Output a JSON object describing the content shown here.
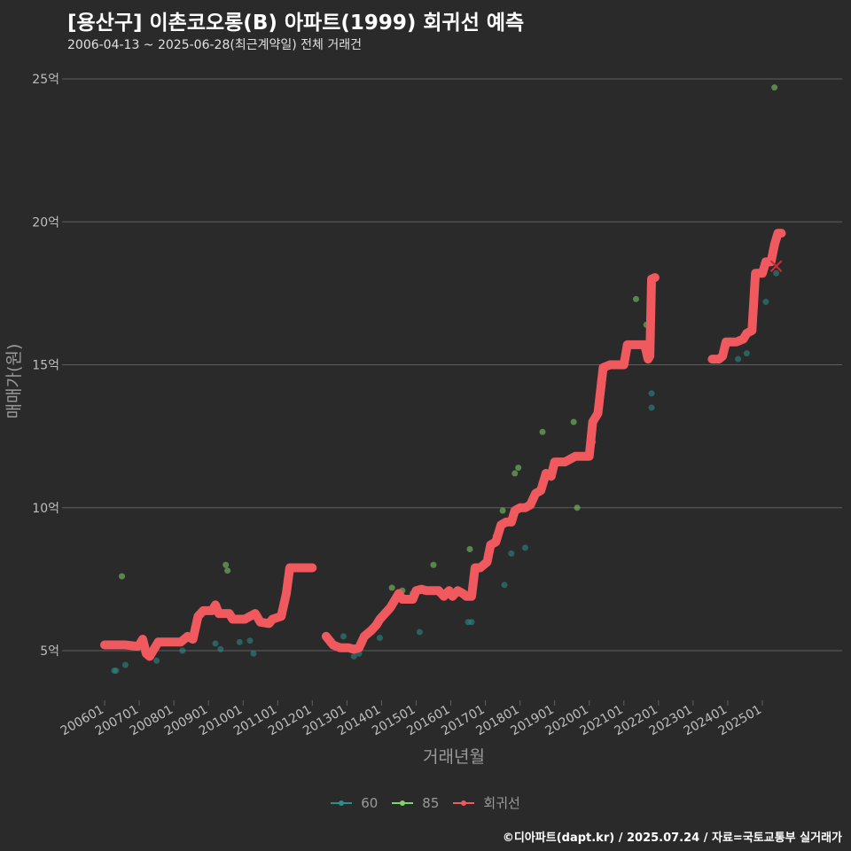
{
  "header": {
    "title": "[용산구] 이촌코오롱(B) 아파트(1999) 회귀선 예측",
    "subtitle": "2006-04-13 ~ 2025-06-28(최근계약일) 전체 거래건"
  },
  "caption": "©디아파트(dapt.kr) / 2025.07.24 / 자료=국토교통부 실거래가",
  "legend": {
    "items": [
      {
        "label": "60",
        "color": "#2a8f8a",
        "kind": "point"
      },
      {
        "label": "85",
        "color": "#7ed36a",
        "kind": "point"
      },
      {
        "label": "회귀선",
        "color": "#f0595e",
        "kind": "line"
      }
    ]
  },
  "colors": {
    "background": "#2b2a2b",
    "grid": "#5f5f5f",
    "series_60": "#2a8f8a",
    "series_85": "#7ed36a",
    "regression": "#f0595e",
    "axis_text": "#bdbdbd"
  },
  "chart_data": {
    "type": "scatter",
    "title": "[용산구] 이촌코오롱(B) 아파트(1999) 회귀선 예측",
    "subtitle": "2006-04-13 ~ 2025-06-28(최근계약일) 전체 거래건",
    "xlabel": "거래년월",
    "ylabel": "매매가(원)",
    "xlim": [
      2005.9,
      2026.1
    ],
    "ylim": [
      3.3,
      26.3
    ],
    "grid": true,
    "legend_position": "bottom",
    "x_ticks": [
      {
        "value": 2006,
        "label": "200601"
      },
      {
        "value": 2007,
        "label": "200701"
      },
      {
        "value": 2008,
        "label": "200801"
      },
      {
        "value": 2009,
        "label": "200901"
      },
      {
        "value": 2010,
        "label": "201001"
      },
      {
        "value": 2011,
        "label": "201101"
      },
      {
        "value": 2012,
        "label": "201201"
      },
      {
        "value": 2013,
        "label": "201301"
      },
      {
        "value": 2014,
        "label": "201401"
      },
      {
        "value": 2015,
        "label": "201501"
      },
      {
        "value": 2016,
        "label": "201601"
      },
      {
        "value": 2017,
        "label": "201701"
      },
      {
        "value": 2018,
        "label": "201801"
      },
      {
        "value": 2019,
        "label": "201901"
      },
      {
        "value": 2020,
        "label": "202001"
      },
      {
        "value": 2021,
        "label": "202101"
      },
      {
        "value": 2022,
        "label": "202201"
      },
      {
        "value": 2023,
        "label": "202301"
      },
      {
        "value": 2024,
        "label": "202401"
      },
      {
        "value": 2025,
        "label": "202501"
      }
    ],
    "y_ticks": [
      {
        "value": 5,
        "label": "5억"
      },
      {
        "value": 10,
        "label": "10억"
      },
      {
        "value": 15,
        "label": "15억"
      },
      {
        "value": 20,
        "label": "20억"
      },
      {
        "value": 25,
        "label": "25억"
      }
    ],
    "series": [
      {
        "name": "60",
        "type": "scatter",
        "color": "#2a8f8a",
        "points": [
          [
            2006.28,
            4.3
          ],
          [
            2006.33,
            4.3
          ],
          [
            2006.6,
            4.5
          ],
          [
            2007.5,
            4.65
          ],
          [
            2008.25,
            5.0
          ],
          [
            2009.2,
            5.25
          ],
          [
            2009.35,
            5.05
          ],
          [
            2009.9,
            5.3
          ],
          [
            2010.2,
            5.35
          ],
          [
            2010.3,
            4.9
          ],
          [
            2012.9,
            5.5
          ],
          [
            2013.2,
            4.8
          ],
          [
            2013.35,
            4.9
          ],
          [
            2013.95,
            5.45
          ],
          [
            2015.1,
            5.65
          ],
          [
            2016.5,
            6.0
          ],
          [
            2016.6,
            6.0
          ],
          [
            2017.55,
            7.3
          ],
          [
            2017.75,
            8.4
          ],
          [
            2018.15,
            8.6
          ],
          [
            2021.8,
            14.0
          ],
          [
            2021.8,
            13.5
          ],
          [
            2024.3,
            15.2
          ],
          [
            2024.55,
            15.4
          ],
          [
            2025.1,
            17.2
          ],
          [
            2025.4,
            18.2
          ]
        ]
      },
      {
        "name": "85",
        "type": "scatter",
        "color": "#7ed36a",
        "points": [
          [
            2006.5,
            7.6
          ],
          [
            2009.5,
            8.0
          ],
          [
            2009.55,
            7.8
          ],
          [
            2014.3,
            7.2
          ],
          [
            2014.6,
            7.1
          ],
          [
            2014.9,
            7.0
          ],
          [
            2015.5,
            8.0
          ],
          [
            2016.55,
            8.55
          ],
          [
            2017.3,
            9.0
          ],
          [
            2017.5,
            9.9
          ],
          [
            2017.85,
            11.2
          ],
          [
            2017.95,
            11.4
          ],
          [
            2018.65,
            12.65
          ],
          [
            2019.55,
            13.0
          ],
          [
            2019.65,
            10.0
          ],
          [
            2020.1,
            12.3
          ],
          [
            2021.35,
            17.3
          ],
          [
            2021.65,
            16.4
          ],
          [
            2025.35,
            24.7
          ]
        ]
      },
      {
        "name": "회귀선",
        "type": "line",
        "color": "#f0595e",
        "segments": [
          [
            [
              2006.0,
              5.2
            ],
            [
              2006.6,
              5.2
            ],
            [
              2006.95,
              5.15
            ],
            [
              2007.0,
              5.2
            ],
            [
              2007.1,
              5.4
            ],
            [
              2007.2,
              4.9
            ],
            [
              2007.3,
              4.8
            ],
            [
              2007.4,
              5.0
            ],
            [
              2007.55,
              5.3
            ],
            [
              2008.0,
              5.3
            ],
            [
              2008.2,
              5.3
            ],
            [
              2008.4,
              5.5
            ],
            [
              2008.55,
              5.4
            ],
            [
              2008.7,
              6.2
            ],
            [
              2008.85,
              6.4
            ],
            [
              2009.1,
              6.4
            ],
            [
              2009.2,
              6.6
            ],
            [
              2009.3,
              6.3
            ],
            [
              2009.6,
              6.3
            ],
            [
              2009.7,
              6.1
            ],
            [
              2010.05,
              6.1
            ],
            [
              2010.2,
              6.2
            ],
            [
              2010.35,
              6.3
            ],
            [
              2010.5,
              6.0
            ],
            [
              2010.75,
              5.95
            ],
            [
              2010.85,
              6.1
            ],
            [
              2011.1,
              6.2
            ],
            [
              2011.25,
              7.0
            ],
            [
              2011.35,
              7.9
            ],
            [
              2011.5,
              7.9
            ],
            [
              2012.0,
              7.9
            ]
          ],
          [
            [
              2012.4,
              5.5
            ],
            [
              2012.6,
              5.2
            ],
            [
              2012.8,
              5.1
            ],
            [
              2013.05,
              5.1
            ],
            [
              2013.2,
              5.05
            ],
            [
              2013.35,
              5.1
            ],
            [
              2013.5,
              5.5
            ],
            [
              2013.7,
              5.7
            ],
            [
              2013.85,
              5.9
            ],
            [
              2013.95,
              6.1
            ],
            [
              2014.1,
              6.3
            ],
            [
              2014.25,
              6.5
            ],
            [
              2014.35,
              6.7
            ],
            [
              2014.5,
              7.0
            ],
            [
              2014.6,
              6.8
            ],
            [
              2014.75,
              6.8
            ],
            [
              2014.9,
              6.8
            ],
            [
              2015.0,
              7.1
            ],
            [
              2015.15,
              7.15
            ],
            [
              2015.3,
              7.1
            ],
            [
              2015.5,
              7.1
            ],
            [
              2015.65,
              7.1
            ],
            [
              2015.8,
              6.9
            ],
            [
              2015.95,
              7.1
            ],
            [
              2016.05,
              6.9
            ],
            [
              2016.2,
              7.1
            ],
            [
              2016.35,
              7.0
            ],
            [
              2016.45,
              6.9
            ],
            [
              2016.6,
              6.9
            ],
            [
              2016.7,
              7.9
            ],
            [
              2016.85,
              7.9
            ],
            [
              2016.95,
              8.0
            ],
            [
              2017.05,
              8.1
            ],
            [
              2017.15,
              8.7
            ],
            [
              2017.3,
              8.8
            ],
            [
              2017.45,
              9.4
            ],
            [
              2017.6,
              9.5
            ],
            [
              2017.75,
              9.5
            ],
            [
              2017.85,
              9.9
            ],
            [
              2018.0,
              10.0
            ],
            [
              2018.15,
              10.0
            ],
            [
              2018.3,
              10.1
            ],
            [
              2018.45,
              10.5
            ],
            [
              2018.6,
              10.6
            ],
            [
              2018.75,
              11.2
            ],
            [
              2018.9,
              11.1
            ],
            [
              2019.0,
              11.6
            ],
            [
              2019.3,
              11.6
            ],
            [
              2019.45,
              11.7
            ],
            [
              2019.6,
              11.8
            ],
            [
              2019.75,
              11.8
            ],
            [
              2019.9,
              11.8
            ],
            [
              2020.0,
              11.8
            ],
            [
              2020.1,
              13.0
            ],
            [
              2020.25,
              13.3
            ],
            [
              2020.4,
              14.9
            ],
            [
              2020.6,
              15.0
            ],
            [
              2020.85,
              15.0
            ],
            [
              2021.0,
              15.0
            ],
            [
              2021.1,
              15.7
            ],
            [
              2021.35,
              15.7
            ],
            [
              2021.6,
              15.7
            ],
            [
              2021.7,
              15.2
            ],
            [
              2021.75,
              15.3
            ],
            [
              2021.8,
              18.0
            ],
            [
              2021.9,
              18.05
            ]
          ],
          [
            [
              2023.55,
              15.2
            ],
            [
              2023.75,
              15.2
            ],
            [
              2023.85,
              15.3
            ],
            [
              2023.95,
              15.8
            ],
            [
              2024.25,
              15.8
            ],
            [
              2024.45,
              15.9
            ],
            [
              2024.55,
              16.1
            ],
            [
              2024.7,
              16.2
            ],
            [
              2024.8,
              18.2
            ],
            [
              2025.0,
              18.2
            ],
            [
              2025.1,
              18.6
            ],
            [
              2025.25,
              18.6
            ],
            [
              2025.35,
              19.2
            ],
            [
              2025.45,
              19.6
            ],
            [
              2025.55,
              19.6
            ]
          ]
        ]
      },
      {
        "name": "회귀선 예측점",
        "type": "marker",
        "color": "#c0323a",
        "points": [
          [
            2025.4,
            18.45
          ]
        ]
      }
    ]
  }
}
